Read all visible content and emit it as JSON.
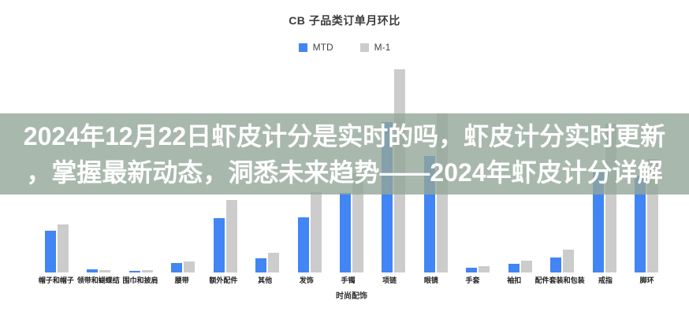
{
  "chart": {
    "title": "CB 子品类订单月环比",
    "xaxis_title": "时尚配饰"
  },
  "overlay": {
    "line1": "2024年12月22日虾皮计分是实时的吗，虾皮计分实时更新",
    "line2": "，掌握最新动态，洞悉未来趋势——2024年虾皮计分详解",
    "bg_color": "rgba(148,166,153,0.8)",
    "text_color": "#ffffff"
  },
  "chart_data": {
    "type": "bar",
    "title": "CB 子品类订单月环比",
    "categories": [
      "帽子和帽子",
      "领带和蝴蝶结",
      "围巾和披肩",
      "腰带",
      "额外配件",
      "其他",
      "发饰",
      "手镯",
      "项链",
      "眼镜",
      "手套",
      "袖扣",
      "配件套装和包装",
      "戒指",
      "脚环"
    ],
    "series": [
      {
        "name": "MTD",
        "color": "#4285f4",
        "values": [
          53,
          4,
          2,
          12,
          69,
          18,
          70,
          101,
          191,
          148,
          6,
          11,
          19,
          131,
          123
        ]
      },
      {
        "name": "M-1",
        "color": "#cccccc",
        "values": [
          61,
          3,
          3,
          14,
          92,
          25,
          102,
          126,
          258,
          202,
          8,
          15,
          29,
          189,
          144
        ]
      }
    ],
    "xlabel": "时尚配饰",
    "ylabel": "",
    "ylim": [
      0,
      270
    ],
    "units": "relative bar height, no y-axis tick labels visible in image",
    "legend_position": "top",
    "grid": false
  }
}
